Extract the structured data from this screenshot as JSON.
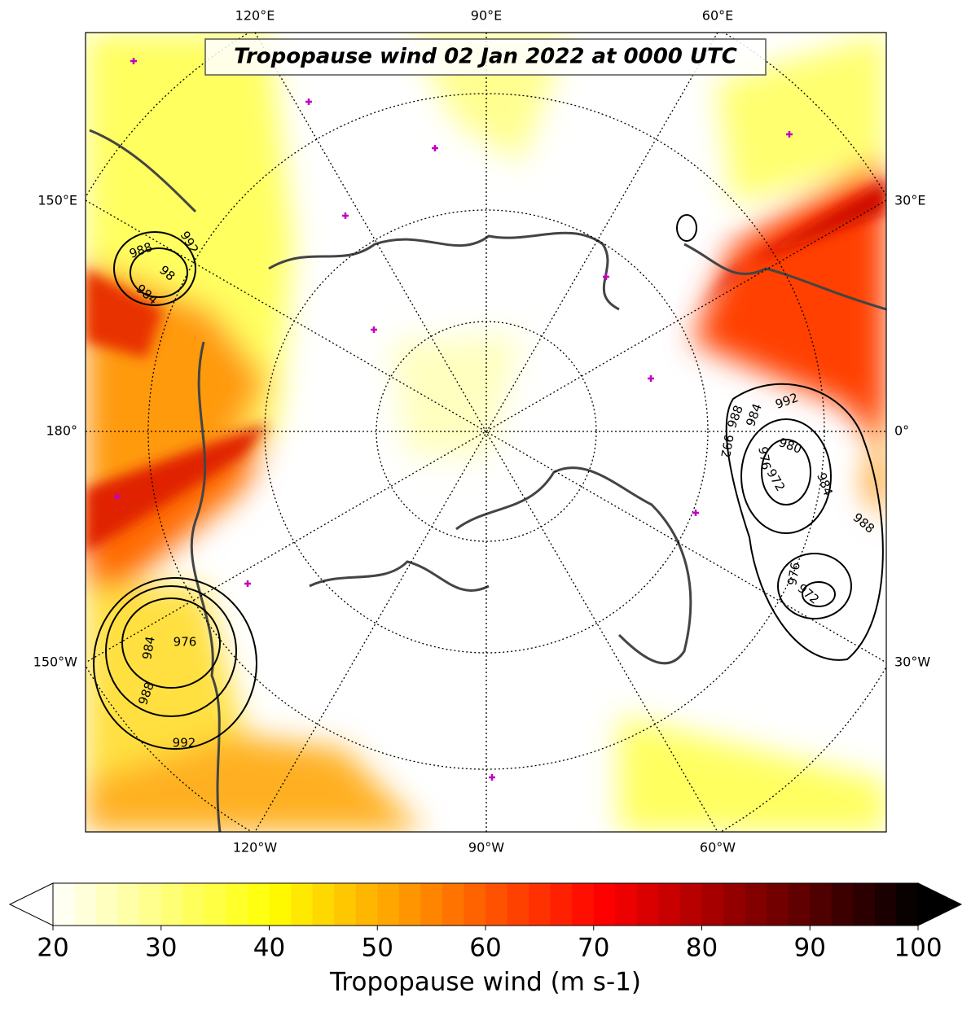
{
  "title": "Tropopause wind 02 Jan 2022 at 0000 UTC",
  "longitude_labels": {
    "top": [
      "120°E",
      "90°E",
      "60°E"
    ],
    "bottom": [
      "120°W",
      "90°W",
      "60°W"
    ],
    "left": [
      "150°E",
      "180°",
      "150°W"
    ],
    "right": [
      "30°E",
      "0°",
      "30°W"
    ]
  },
  "contour_labels": [
    "988",
    "992",
    "98",
    "984",
    "976",
    "984",
    "988",
    "992",
    "992",
    "988",
    "984",
    "980",
    "992",
    "976",
    "972",
    "984",
    "988",
    "976",
    "972"
  ],
  "colorbar": {
    "label": "Tropopause wind (m s-1)",
    "range": [
      20,
      100
    ],
    "ticks": [
      20,
      30,
      40,
      50,
      60,
      70,
      80,
      90,
      100
    ],
    "colormap": "hot_r",
    "extend": "both"
  }
}
